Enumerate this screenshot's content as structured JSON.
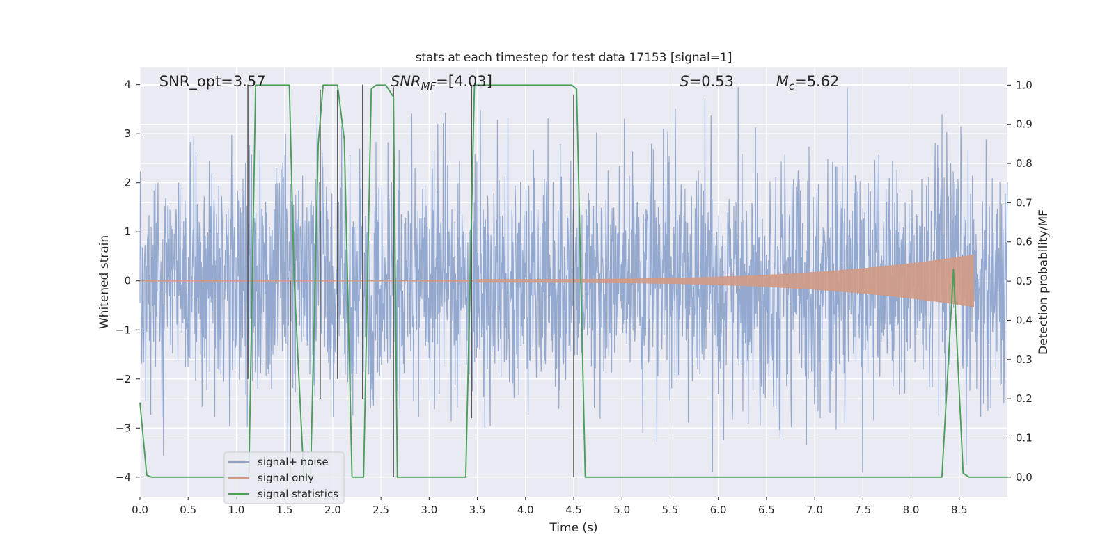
{
  "chart_data": {
    "type": "line",
    "title": "stats at each timestep for test data 17153 [signal=1]",
    "xlabel": "Time (s)",
    "ylabel": "Whitened strain",
    "ylabel_right": "Detection probability/MF",
    "xlim": [
      0.0,
      9.0
    ],
    "ylim": [
      -4.4,
      4.35
    ],
    "ylim_right": [
      -0.05,
      1.045
    ],
    "xticks": [
      0.0,
      0.5,
      1.0,
      1.5,
      2.0,
      2.5,
      3.0,
      3.5,
      4.0,
      4.5,
      5.0,
      5.5,
      6.0,
      6.5,
      7.0,
      7.5,
      8.0,
      8.5
    ],
    "xtick_labels": [
      "0.0",
      "0.5",
      "1.0",
      "1.5",
      "2.0",
      "2.5",
      "3.0",
      "3.5",
      "4.0",
      "4.5",
      "5.0",
      "5.5",
      "6.0",
      "6.5",
      "7.0",
      "7.5",
      "8.0",
      "8.5"
    ],
    "yticks": [
      -4,
      -3,
      -2,
      -1,
      0,
      1,
      2,
      3,
      4
    ],
    "ytick_labels": [
      "−4",
      "−3",
      "−2",
      "−1",
      "0",
      "1",
      "2",
      "3",
      "4"
    ],
    "yticks_right": [
      0.0,
      0.1,
      0.2,
      0.3,
      0.4,
      0.5,
      0.6,
      0.7,
      0.8,
      0.9,
      1.0
    ],
    "ytick_labels_right": [
      "0.0",
      "0.1",
      "0.2",
      "0.3",
      "0.4",
      "0.5",
      "0.6",
      "0.7",
      "0.8",
      "0.9",
      "1.0"
    ],
    "grid": true,
    "legend_position": "lower-left",
    "annotations": [
      {
        "id": "snr-opt",
        "text": "SNR_opt=3.57",
        "x": 0.2
      },
      {
        "id": "snr-mf",
        "text": "SNR_MF=[4.03]",
        "x": 2.6
      },
      {
        "id": "s-stat",
        "text": "S=0.53",
        "x": 5.6
      },
      {
        "id": "mc-stat",
        "text": "M_c=5.62",
        "x": 6.6
      }
    ],
    "series": [
      {
        "name": "signal+ noise",
        "kind": "noise",
        "color": "#8fa5ce",
        "amplitude": 2.4,
        "x_end": 9.0
      },
      {
        "name": "signal only",
        "kind": "chirp",
        "color": "#d29a84",
        "x_start": 3.5,
        "x_end": 8.65,
        "peak_amplitude": 0.5
      },
      {
        "name": "signal statistics",
        "kind": "line",
        "axis": "right",
        "color": "#4c9e5b",
        "x": [
          0.0,
          0.07,
          0.12,
          1.05,
          1.13,
          1.2,
          1.55,
          1.6,
          1.7,
          1.77,
          1.85,
          1.9,
          1.95,
          2.05,
          2.12,
          2.2,
          2.25,
          2.32,
          2.4,
          2.45,
          2.55,
          2.63,
          2.67,
          2.73,
          3.38,
          3.47,
          3.51,
          4.48,
          4.53,
          4.62,
          4.7,
          8.32,
          8.44,
          8.54,
          8.6,
          9.0
        ],
        "y": [
          0.19,
          0.005,
          0.0,
          0.0,
          0.0,
          1.0,
          1.0,
          0.5,
          0.0,
          0.0,
          0.85,
          1.0,
          1.0,
          1.0,
          0.86,
          0.0,
          0.0,
          0.0,
          0.99,
          1.0,
          1.0,
          0.97,
          0.0,
          0.0,
          0.0,
          1.0,
          1.0,
          1.0,
          0.99,
          0.0,
          0.0,
          0.0,
          0.53,
          0.01,
          0.0,
          0.0
        ]
      }
    ],
    "vertical_markers": [
      {
        "x": 1.12,
        "y_top": 4.0,
        "y_bottom": -2.0
      },
      {
        "x": 1.56,
        "y_top": 0.0,
        "y_bottom": -4.0
      },
      {
        "x": 1.87,
        "y_top": 3.9,
        "y_bottom": -2.4
      },
      {
        "x": 2.05,
        "y_top": 3.9,
        "y_bottom": -2.0
      },
      {
        "x": 2.31,
        "y_top": 4.0,
        "y_bottom": -2.4
      },
      {
        "x": 2.63,
        "y_top": 3.95,
        "y_bottom": -4.0
      },
      {
        "x": 3.44,
        "y_top": 4.0,
        "y_bottom": -2.8
      },
      {
        "x": 4.5,
        "y_top": 3.8,
        "y_bottom": -4.0
      }
    ]
  }
}
